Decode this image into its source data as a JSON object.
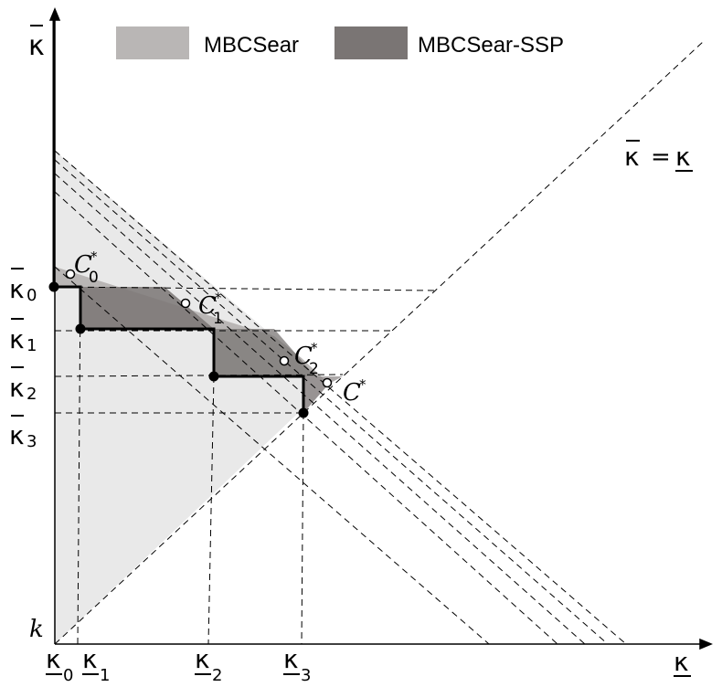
{
  "legend": {
    "items": [
      {
        "label": "MBCSear",
        "color": "#b9b6b5"
      },
      {
        "label": "MBCSear-SSP",
        "color": "#7a7574"
      }
    ]
  },
  "axes": {
    "x_label": "κ",
    "y_label": "κ",
    "origin_label": "k"
  },
  "diagonal_label": {
    "left": "κ",
    "eq": "=",
    "right": "κ"
  },
  "x_ticks": [
    {
      "sym": "κ",
      "sub": "0"
    },
    {
      "sym": "κ",
      "sub": "1"
    },
    {
      "sym": "κ",
      "sub": "2"
    },
    {
      "sym": "κ",
      "sub": "3"
    }
  ],
  "y_ticks": [
    {
      "sym": "κ",
      "sub": "0"
    },
    {
      "sym": "κ",
      "sub": "1"
    },
    {
      "sym": "κ",
      "sub": "2"
    },
    {
      "sym": "κ",
      "sub": "3"
    }
  ],
  "points": [
    {
      "sym": "C",
      "sup": "*",
      "sub": "0"
    },
    {
      "sym": "C",
      "sup": "*",
      "sub": "1"
    },
    {
      "sym": "C",
      "sup": "*",
      "sub": "2"
    },
    {
      "sym": "C",
      "sup": "*",
      "sub": ""
    }
  ],
  "colors": {
    "light_region": "#e9e9e9",
    "mbcsear": "#b9b6b5",
    "mbcsear_ssp": "#7a7574",
    "ink": "#000000"
  }
}
